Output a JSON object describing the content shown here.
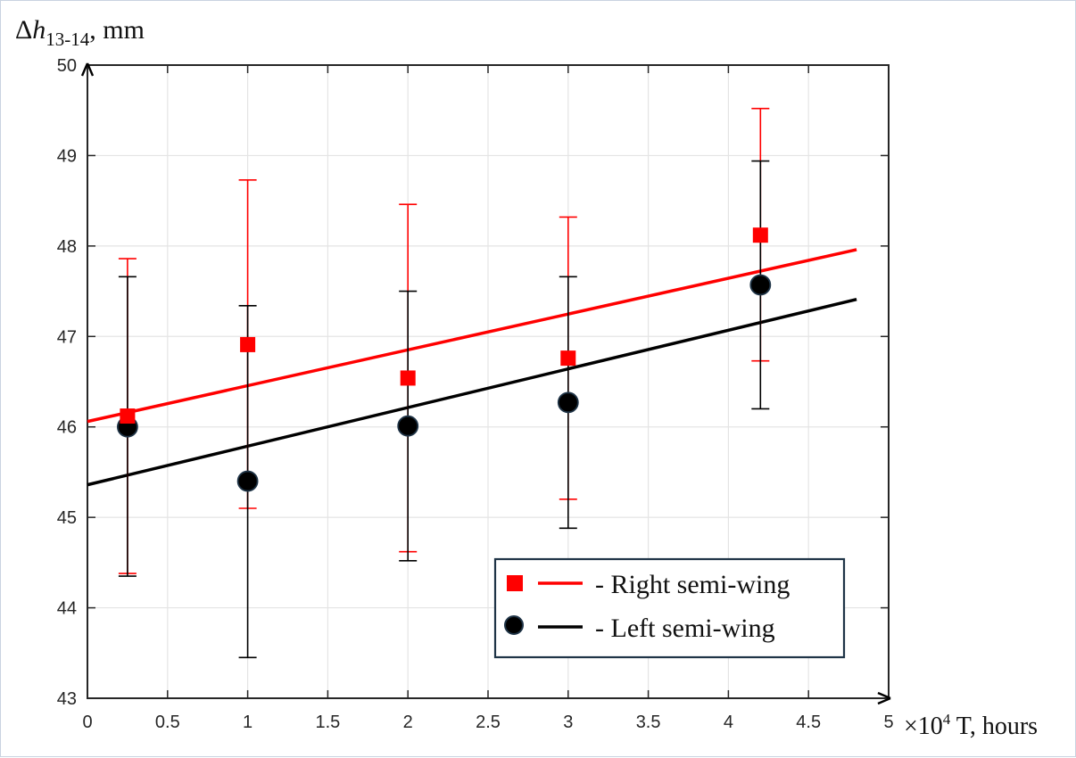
{
  "chart_data": {
    "type": "scatter",
    "ylabel": {
      "prefix": "Δ",
      "symbol": "h",
      "subscript": "13-14",
      "suffix": ", mm"
    },
    "xlabel": {
      "multiplier": "×10",
      "exponent": "4",
      "text": " T, hours"
    },
    "xlim": [
      0,
      5
    ],
    "ylim": [
      43,
      50
    ],
    "xticks": [
      0,
      0.5,
      1,
      1.5,
      2,
      2.5,
      3,
      3.5,
      4,
      4.5,
      5
    ],
    "xtick_labels": [
      "0",
      "0.5",
      "1",
      "1.5",
      "2",
      "2.5",
      "3",
      "3.5",
      "4",
      "4.5",
      "5"
    ],
    "yticks": [
      43,
      44,
      45,
      46,
      47,
      48,
      49,
      50
    ],
    "ytick_labels": [
      "43",
      "44",
      "45",
      "46",
      "47",
      "48",
      "49",
      "50"
    ],
    "grid": true,
    "legend_position": "bottom-right",
    "series": [
      {
        "name": "Right semi-wing",
        "legend_label": "- Right semi-wing",
        "marker": "square",
        "color": "#ff0000",
        "x": [
          0.25,
          1,
          2,
          3,
          4.2
        ],
        "y": [
          46.12,
          46.91,
          46.54,
          46.76,
          48.12
        ],
        "err_low": [
          44.38,
          45.1,
          44.62,
          45.2,
          46.73
        ],
        "err_high": [
          47.86,
          48.73,
          48.46,
          48.32,
          49.52
        ],
        "trend_line": {
          "x": [
            0,
            4.8
          ],
          "y": [
            46.06,
            47.96
          ]
        }
      },
      {
        "name": "Left semi-wing",
        "legend_label": "- Left semi-wing",
        "marker": "circle",
        "color": "#000000",
        "x": [
          0.25,
          1,
          2,
          3,
          4.2
        ],
        "y": [
          46.0,
          45.4,
          46.01,
          46.27,
          47.57
        ],
        "err_low": [
          44.35,
          43.45,
          44.52,
          44.88,
          46.2
        ],
        "err_high": [
          47.66,
          47.34,
          47.5,
          47.66,
          48.94
        ],
        "trend_line": {
          "x": [
            0,
            4.8
          ],
          "y": [
            45.36,
            47.41
          ]
        }
      }
    ]
  }
}
